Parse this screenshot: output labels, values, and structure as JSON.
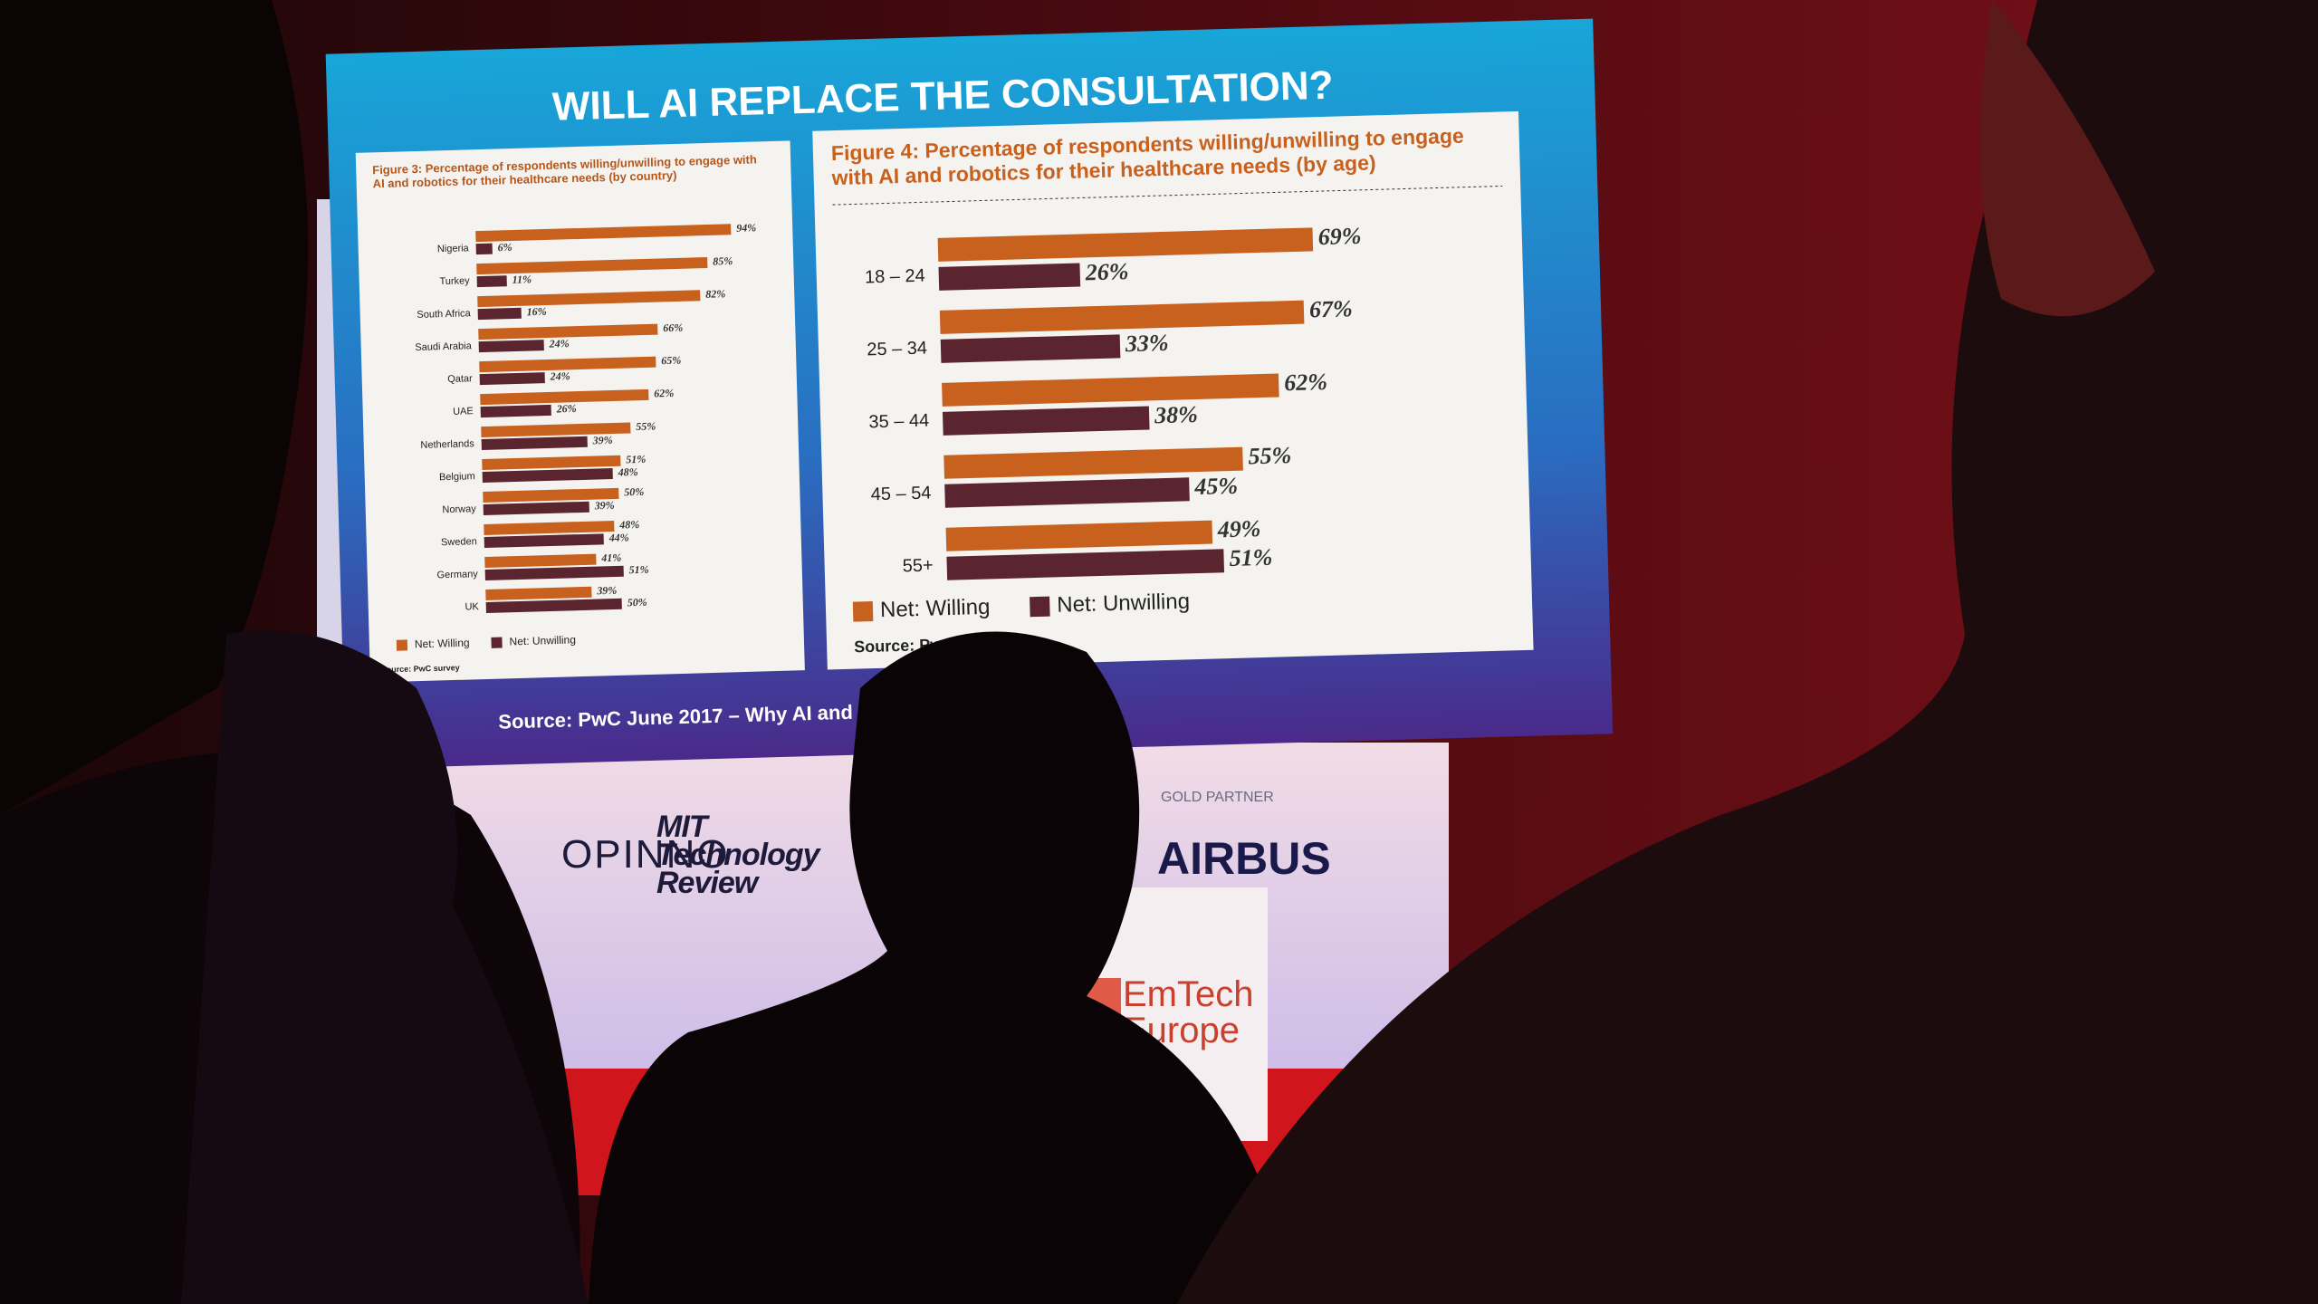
{
  "slide": {
    "title": "WILL AI REPLACE THE CONSULTATION?",
    "source": "Source: PwC June 2017 – Why AI and Ro"
  },
  "chart_data": [
    {
      "type": "bar",
      "orientation": "horizontal",
      "title": "Figure 3: Percentage of respondents willing/unwilling to engage with AI and robotics for their healthcare needs (by country)",
      "categories": [
        "Nigeria",
        "Turkey",
        "South Africa",
        "Saudi Arabia",
        "Qatar",
        "UAE",
        "Netherlands",
        "Belgium",
        "Norway",
        "Sweden",
        "Germany",
        "UK"
      ],
      "series": [
        {
          "name": "Net: Willing",
          "color": "#c8601e",
          "values": [
            94,
            85,
            82,
            66,
            65,
            62,
            55,
            51,
            50,
            48,
            41,
            39
          ],
          "value_labels": [
            "94%",
            "85%",
            "82%",
            "66%",
            "65%",
            "62%",
            "55%",
            "51%",
            "50%",
            "48%",
            "41%",
            "39%"
          ]
        },
        {
          "name": "Net: Unwilling",
          "color": "#5b2530",
          "values": [
            6,
            11,
            16,
            24,
            24,
            26,
            39,
            48,
            39,
            44,
            51,
            50
          ],
          "value_labels": [
            "6%",
            "11%",
            "16%",
            "24%",
            "24%",
            "26%",
            "39%",
            "48%",
            "39%",
            "44%",
            "51%",
            "50%"
          ]
        }
      ],
      "source": "Source: PwC survey"
    },
    {
      "type": "bar",
      "orientation": "horizontal",
      "title": "Figure 4: Percentage of respondents willing/unwilling to engage with AI and robotics for their healthcare needs (by age)",
      "categories": [
        "18 – 24",
        "25 – 34",
        "35 – 44",
        "45 – 54",
        "55+"
      ],
      "series": [
        {
          "name": "Net: Willing",
          "color": "#c8601e",
          "values": [
            69,
            67,
            62,
            55,
            49
          ],
          "value_labels": [
            "69%",
            "67%",
            "62%",
            "55%",
            "49%"
          ]
        },
        {
          "name": "Net: Unwilling",
          "color": "#5b2530",
          "values": [
            26,
            33,
            38,
            45,
            51
          ],
          "value_labels": [
            "26%",
            "33%",
            "38%",
            "45%",
            "51%"
          ]
        }
      ],
      "source": "Source: PwC survey"
    }
  ],
  "stage": {
    "sponsors": [
      "OPINNO",
      "MIT Technology Review",
      "AIRBUS"
    ],
    "partner_label": "GOLD PARTNER",
    "podium": "EmTech Europe"
  }
}
